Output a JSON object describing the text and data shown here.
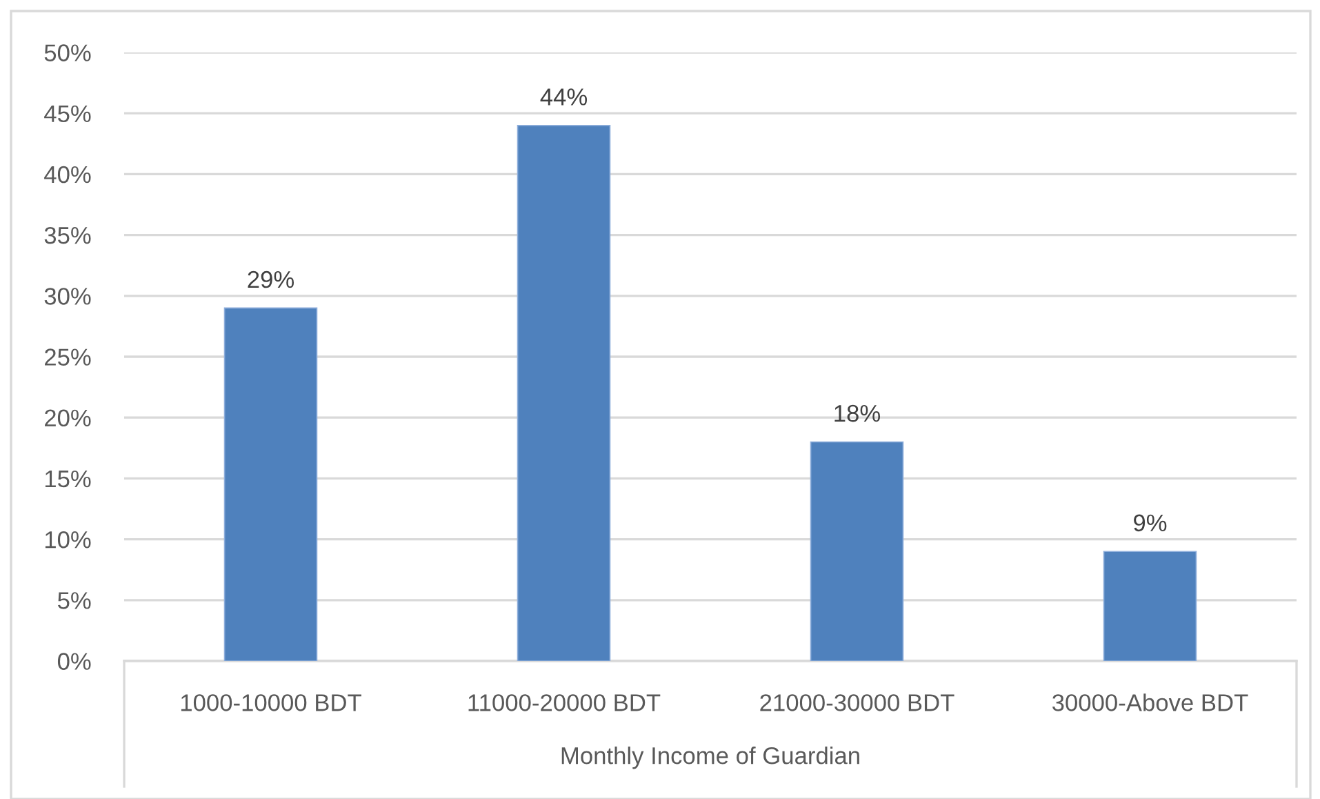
{
  "chart_data": {
    "type": "bar",
    "xlabel": "Monthly Income of Guardian",
    "categories": [
      "1000-10000 BDT",
      "11000-20000 BDT",
      "21000-30000 BDT",
      "30000-Above BDT"
    ],
    "values": [
      29,
      44,
      18,
      9
    ],
    "color": "#4f81bd",
    "value_labels": [
      "29%",
      "44%",
      "18%",
      "9%"
    ],
    "ylim": [
      0,
      50
    ],
    "yticks": [
      {
        "value": 0,
        "label": "0%"
      },
      {
        "value": 5,
        "label": "5%"
      },
      {
        "value": 10,
        "label": "10%"
      },
      {
        "value": 15,
        "label": "15%"
      },
      {
        "value": 20,
        "label": "20%"
      },
      {
        "value": 25,
        "label": "25%"
      },
      {
        "value": 30,
        "label": "30%"
      },
      {
        "value": 35,
        "label": "35%"
      },
      {
        "value": 40,
        "label": "40%"
      },
      {
        "value": 45,
        "label": "45%"
      },
      {
        "value": 50,
        "label": "50%"
      }
    ],
    "grid": "y"
  }
}
